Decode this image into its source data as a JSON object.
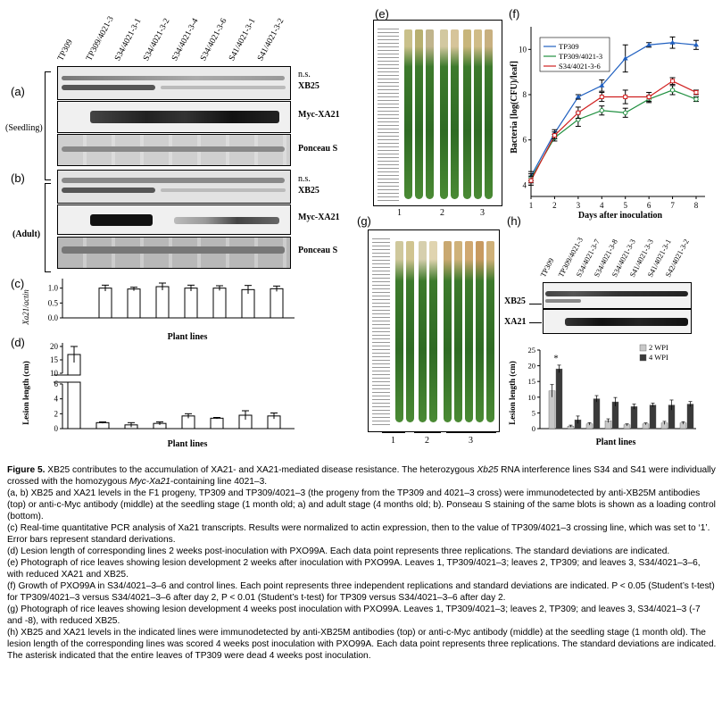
{
  "panels": {
    "a": "(a)",
    "b": "(b)",
    "c": "(c)",
    "d": "(d)",
    "e": "(e)",
    "f": "(f)",
    "g": "(g)",
    "h": "(h)"
  },
  "blot_left": {
    "lanes": [
      "TP309",
      "TP309/4021-3",
      "S34/4021-3-1",
      "S34/4021-3-2",
      "S34/4021-3-4",
      "S34/4021-3-6",
      "S41/4021-3-1",
      "S41/4021-3-2"
    ],
    "labels": {
      "ns": "n.s.",
      "xb25": "XB25",
      "myc": "Myc-XA21",
      "ponceau": "Ponceau S",
      "seedling": "(Seedling)",
      "adult": "(Adult)"
    }
  },
  "panel_c": {
    "ylabel": "Xa21/actin",
    "xlabel": "Plant lines",
    "ticks": [
      "1.0",
      "0.5",
      "0.0"
    ]
  },
  "panel_d": {
    "ylabel": "Lesion length (cm)",
    "xlabel": "Plant lines",
    "ticks": [
      "20",
      "15",
      "10",
      "6",
      "4",
      "2",
      "0"
    ]
  },
  "panel_f": {
    "ylabel": "Bacteria [log(CFU)/leaf]",
    "xlabel": "Days after inoculation",
    "yticks": [
      "10",
      "8",
      "6",
      "4"
    ],
    "xticks": [
      "1",
      "2",
      "3",
      "4",
      "5",
      "6",
      "7",
      "8"
    ]
  },
  "panel_e": {
    "groups": [
      "1",
      "2",
      "3"
    ]
  },
  "panel_g": {
    "groups": [
      "1",
      "2",
      "3"
    ]
  },
  "panel_h": {
    "lanes": [
      "TP309",
      "TP309/4021-3",
      "S34/4021-3-7",
      "S34/4021-3-8",
      "S34/4021-3-3",
      "S41/4021-3-3",
      "S41/4021-3-1",
      "S42/4021-3-2"
    ],
    "xb25": "XB25",
    "xa21": "XA21",
    "ylabel": "Lesion length (cm)",
    "xlabel": "Plant lines",
    "yticks": [
      "25",
      "20",
      "15",
      "10",
      "5",
      "0"
    ],
    "asterisk": "*"
  },
  "chart_data": [
    {
      "panel": "c",
      "type": "bar",
      "categories": [
        "TP309/4021-3",
        "S34/4021-3-1",
        "S34/4021-3-2",
        "S34/4021-3-4",
        "S34/4021-3-6",
        "S41/4021-3-1",
        "S41/4021-3-2"
      ],
      "values": [
        1.0,
        0.97,
        1.05,
        1.0,
        1.0,
        0.95,
        0.98
      ],
      "errors": [
        0.1,
        0.06,
        0.12,
        0.1,
        0.08,
        0.14,
        0.09
      ],
      "ylabel": "Xa21/actin",
      "xlabel": "Plant lines",
      "ylim": [
        0,
        1.2
      ]
    },
    {
      "panel": "d",
      "type": "bar",
      "categories": [
        "TP309",
        "TP309/4021-3",
        "S34/4021-3-1",
        "S34/4021-3-2",
        "S34/4021-3-4",
        "S34/4021-3-6",
        "S41/4021-3-1",
        "S41/4021-3-2"
      ],
      "values": [
        17,
        0.8,
        0.5,
        0.7,
        1.7,
        1.4,
        1.8,
        1.7
      ],
      "errors": [
        3,
        0.1,
        0.3,
        0.2,
        0.3,
        0.1,
        0.6,
        0.4
      ],
      "ylabel": "Lesion length (cm)",
      "xlabel": "Plant lines",
      "ylim": [
        0,
        20
      ],
      "axis_break": [
        6,
        10
      ]
    },
    {
      "panel": "f",
      "type": "line",
      "x": [
        1,
        2,
        3,
        4,
        5,
        6,
        7,
        8
      ],
      "series": [
        {
          "name": "TP309",
          "color": "#2060c0",
          "marker": "triangle",
          "values": [
            4.4,
            6.3,
            7.9,
            8.4,
            9.6,
            10.2,
            10.3,
            10.2
          ],
          "errors": [
            0.2,
            0.15,
            0.1,
            0.25,
            0.6,
            0.1,
            0.25,
            0.2
          ]
        },
        {
          "name": "TP309/4021-3",
          "color": "#209040",
          "marker": "circle",
          "values": [
            4.3,
            6.1,
            6.9,
            7.3,
            7.2,
            7.8,
            8.2,
            7.8
          ],
          "errors": [
            0.2,
            0.15,
            0.3,
            0.2,
            0.2,
            0.15,
            0.2,
            0.1
          ]
        },
        {
          "name": "S34/4021-3-6",
          "color": "#d02020",
          "marker": "square",
          "values": [
            4.2,
            6.2,
            7.2,
            7.9,
            7.9,
            7.9,
            8.6,
            8.1
          ],
          "errors": [
            0.2,
            0.15,
            0.25,
            0.2,
            0.3,
            0.2,
            0.15,
            0.1
          ]
        }
      ],
      "ylabel": "Bacteria [log(CFU)/leaf]",
      "xlabel": "Days after inoculation",
      "xlim": [
        1,
        8
      ],
      "ylim": [
        3.5,
        11
      ],
      "legend": "top-left"
    },
    {
      "panel": "h",
      "type": "bar",
      "categories": [
        "TP309",
        "TP309/4021-3",
        "S34/4021-3-7",
        "S34/4021-3-8",
        "S34/4021-3-3",
        "S41/4021-3-3",
        "S41/4021-3-1",
        "S42/4021-3-2"
      ],
      "series": [
        {
          "name": "2 WPI",
          "color": "#c8c8c8",
          "values": [
            12,
            0.8,
            1.5,
            2.5,
            1.2,
            1.5,
            1.8,
            1.8
          ],
          "errors": [
            2,
            0.3,
            0.4,
            0.6,
            0.3,
            0.3,
            0.5,
            0.4
          ]
        },
        {
          "name": "4 WPI",
          "color": "#3a3a3a",
          "values": [
            19,
            2.8,
            9.5,
            8.5,
            7,
            7.5,
            7.5,
            7.8
          ],
          "errors": [
            1.2,
            1.2,
            1,
            1.4,
            0.8,
            0.6,
            1.6,
            0.8
          ]
        }
      ],
      "ylabel": "Lesion length (cm)",
      "xlabel": "Plant lines",
      "ylim": [
        0,
        25
      ],
      "legend": "top-right",
      "annotation": "*"
    }
  ],
  "caption": {
    "title_bold": "Figure 5.",
    "p0a": " XB25 contributes to the accumulation of XA21- and XA21-mediated disease resistance. The heterozygous ",
    "p0b": "Xb25",
    "p0c": " RNA interference lines S34 and S41 were individually crossed with the homozygous ",
    "p0d": "Myc-Xa21",
    "p0e": "-containing line 4021–3.",
    "p1": "(a, b) XB25 and XA21 levels in the F1 progeny, TP309 and TP309/4021–3 (the progeny from the TP309 and 4021–3 cross) were immunodetected by anti-XB25M antibodies (top) or anti-c-Myc antibody (middle) at the seedling stage (1 month old; a) and adult stage (4 months old; b). Ponseau S staining of the same blots is shown as a loading control (bottom).",
    "p2": "(c) Real-time quantitative PCR analysis of Xa21 transcripts. Results were normalized to actin expression, then to the value of TP309/4021–3 crossing line, which was set to ‘1’. Error bars represent standard derivations.",
    "p3": "(d) Lesion length of corresponding lines 2 weeks post-inoculation with PXO99A. Each data point represents three replications. The standard deviations are indicated.",
    "p4": "(e) Photograph of rice leaves showing lesion development 2 weeks after inoculation with PXO99A. Leaves 1, TP309/4021–3; leaves 2, TP309; and leaves 3, S34/4021–3–6, with reduced XA21 and XB25.",
    "p5": "(f) Growth of PXO99A in S34/4021–3–6 and control lines. Each point represents three independent replications and standard deviations are indicated. P < 0.05 (Student’s t-test) for TP309/4021–3 versus S34/4021–3–6 after day 2, P < 0.01 (Student’s t-test) for TP309 versus S34/4021–3–6 after day 2.",
    "p6": "(g) Photograph of rice leaves showing lesion development 4 weeks post inoculation with PXO99A. Leaves 1, TP309/4021–3; leaves 2, TP309; and leaves 3, S34/4021–3 (-7 and -8), with reduced XB25.",
    "p7": "(h) XB25 and XA21 levels in the indicated lines were immunodetected by anti-XB25M antibodies (top) or anti-c-Myc antibody (middle) at the seedling stage (1 month old). The lesion length of the corresponding lines was scored 4 weeks post inoculation with PXO99A. Each data point represents three replications. The standard deviations are indicated. The asterisk indicated that the entire leaves of TP309 were dead 4 weeks post inoculation."
  }
}
